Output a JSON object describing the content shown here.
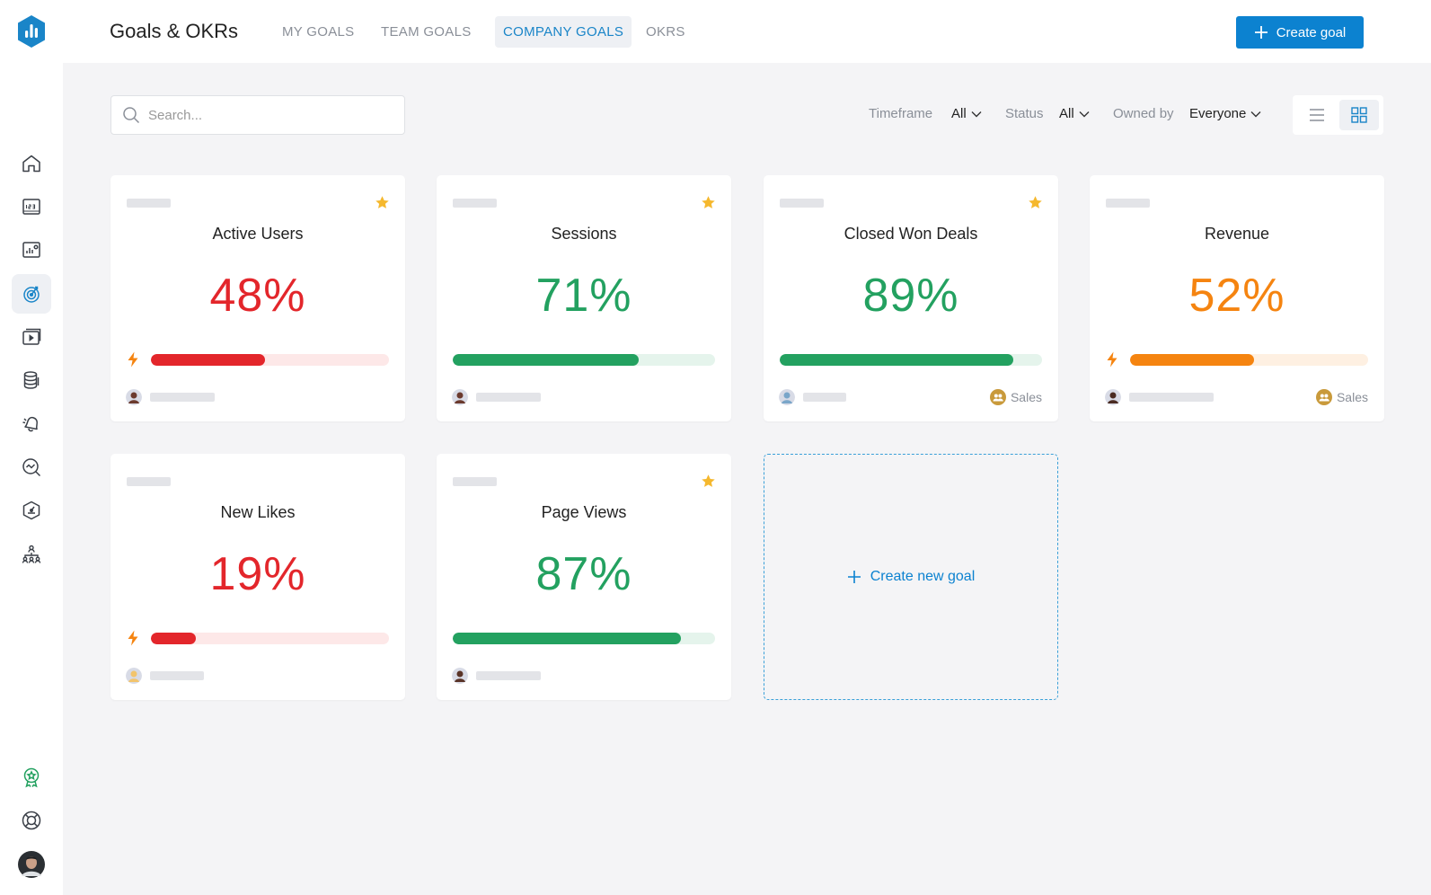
{
  "header": {
    "title": "Goals & OKRs",
    "tabs": [
      {
        "label": "MY GOALS",
        "active": false
      },
      {
        "label": "TEAM GOALS",
        "active": false
      },
      {
        "label": "COMPANY GOALS",
        "active": true
      },
      {
        "label": "OKRS",
        "active": false
      }
    ],
    "create_button": "Create goal"
  },
  "sidebar": {
    "items": [
      {
        "icon": "home-icon",
        "active": false
      },
      {
        "icon": "numbers-icon",
        "active": false
      },
      {
        "icon": "dashboard-icon",
        "active": false
      },
      {
        "icon": "goals-target-icon",
        "active": true
      },
      {
        "icon": "presentation-icon",
        "active": false
      },
      {
        "icon": "database-icon",
        "active": false
      },
      {
        "icon": "alerts-bell-icon",
        "active": false
      },
      {
        "icon": "metrics-search-icon",
        "active": false
      },
      {
        "icon": "benchmarks-gauge-icon",
        "active": false
      },
      {
        "icon": "team-structure-icon",
        "active": false
      }
    ],
    "bottom": [
      {
        "icon": "achievement-badge-icon"
      },
      {
        "icon": "help-lifebuoy-icon"
      },
      {
        "icon": "user-avatar"
      }
    ]
  },
  "toolbar": {
    "search_placeholder": "Search...",
    "filters": [
      {
        "label": "Timeframe",
        "value": "All"
      },
      {
        "label": "Status",
        "value": "All"
      },
      {
        "label": "Owned by",
        "value": "Everyone"
      }
    ],
    "view_mode": "grid"
  },
  "colors": {
    "red": "#e3262b",
    "green": "#23a160",
    "orange": "#f58410",
    "accent": "#0c82d0"
  },
  "goals": [
    {
      "name": "Active Users",
      "percent": "48%",
      "progress": 0.48,
      "color": "red",
      "starred": true,
      "alert": true,
      "team": ""
    },
    {
      "name": "Sessions",
      "percent": "71%",
      "progress": 0.71,
      "color": "green",
      "starred": true,
      "alert": false,
      "team": ""
    },
    {
      "name": "Closed Won Deals",
      "percent": "89%",
      "progress": 0.89,
      "color": "green",
      "starred": true,
      "alert": false,
      "team": "Sales"
    },
    {
      "name": "Revenue",
      "percent": "52%",
      "progress": 0.52,
      "color": "orange",
      "starred": false,
      "alert": true,
      "team": "Sales"
    },
    {
      "name": "New Likes",
      "percent": "19%",
      "progress": 0.19,
      "color": "red",
      "starred": false,
      "alert": true,
      "team": ""
    },
    {
      "name": "Page Views",
      "percent": "87%",
      "progress": 0.87,
      "color": "green",
      "starred": true,
      "alert": false,
      "team": ""
    }
  ],
  "new_goal_label": "Create new goal"
}
